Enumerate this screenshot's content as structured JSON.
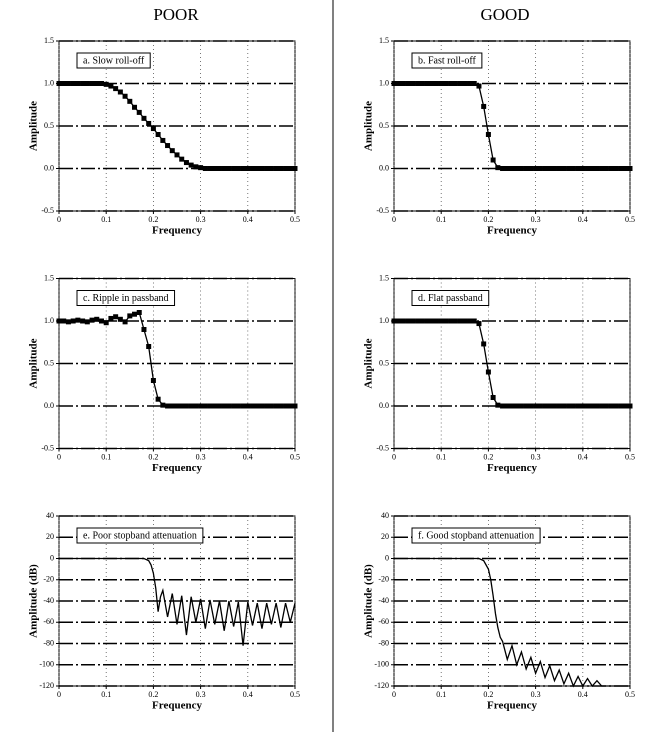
{
  "column_titles": [
    "POOR",
    "GOOD"
  ],
  "chart_data": [
    {
      "type": "line",
      "annotation": "a.  Slow roll-off",
      "xlabel": "Frequency",
      "ylabel": "Amplitude",
      "xlim": [
        0,
        0.5
      ],
      "xticks": [
        0,
        0.1,
        0.2,
        0.3,
        0.4,
        0.5
      ],
      "ylim": [
        -0.5,
        1.5
      ],
      "yticks": [
        1.5,
        {
          "value": 1,
          "label": "1.0"
        },
        0.5,
        {
          "value": 0,
          "label": "0.0"
        },
        -0.5
      ],
      "grid": true,
      "series": [
        {
          "color": "#000000",
          "marker": "square",
          "x": [
            0,
            0.01,
            0.02,
            0.03,
            0.04,
            0.05,
            0.06,
            0.07,
            0.08,
            0.09,
            0.1,
            0.11,
            0.12,
            0.13,
            0.14,
            0.15,
            0.16,
            0.17,
            0.18,
            0.19,
            0.2,
            0.21,
            0.22,
            0.23,
            0.24,
            0.25,
            0.26,
            0.27,
            0.28,
            0.29,
            0.3,
            0.31,
            0.32,
            0.33,
            0.34,
            0.35,
            0.36,
            0.37,
            0.38,
            0.39,
            0.4,
            0.41,
            0.42,
            0.43,
            0.44,
            0.45,
            0.46,
            0.47,
            0.48,
            0.49,
            0.5
          ],
          "values": [
            1,
            1,
            1,
            1,
            1,
            1,
            1,
            1,
            1,
            1,
            0.99,
            0.97,
            0.94,
            0.9,
            0.85,
            0.79,
            0.72,
            0.66,
            0.59,
            0.53,
            0.47,
            0.4,
            0.33,
            0.27,
            0.21,
            0.16,
            0.11,
            0.07,
            0.04,
            0.02,
            0.01,
            0,
            0,
            0,
            0,
            0,
            0,
            0,
            0,
            0,
            0,
            0,
            0,
            0,
            0,
            0,
            0,
            0,
            0,
            0,
            0
          ]
        }
      ]
    },
    {
      "type": "line",
      "annotation": "b.  Fast roll-off",
      "xlabel": "Frequency",
      "ylabel": "Amplitude",
      "xlim": [
        0,
        0.5
      ],
      "xticks": [
        0,
        0.1,
        0.2,
        0.3,
        0.4,
        0.5
      ],
      "ylim": [
        -0.5,
        1.5
      ],
      "yticks": [
        1.5,
        {
          "value": 1,
          "label": "1.0"
        },
        0.5,
        {
          "value": 0,
          "label": "0.0"
        },
        -0.5
      ],
      "grid": true,
      "series": [
        {
          "color": "#000000",
          "marker": "square",
          "x": [
            0,
            0.01,
            0.02,
            0.03,
            0.04,
            0.05,
            0.06,
            0.07,
            0.08,
            0.09,
            0.1,
            0.11,
            0.12,
            0.13,
            0.14,
            0.15,
            0.16,
            0.17,
            0.18,
            0.19,
            0.2,
            0.21,
            0.22,
            0.23,
            0.24,
            0.25,
            0.26,
            0.27,
            0.28,
            0.29,
            0.3,
            0.31,
            0.32,
            0.33,
            0.34,
            0.35,
            0.36,
            0.37,
            0.38,
            0.39,
            0.4,
            0.41,
            0.42,
            0.43,
            0.44,
            0.45,
            0.46,
            0.47,
            0.48,
            0.49,
            0.5
          ],
          "values": [
            1,
            1,
            1,
            1,
            1,
            1,
            1,
            1,
            1,
            1,
            1,
            1,
            1,
            1,
            1,
            1,
            1,
            1,
            0.97,
            0.73,
            0.4,
            0.1,
            0.01,
            0,
            0,
            0,
            0,
            0,
            0,
            0,
            0,
            0,
            0,
            0,
            0,
            0,
            0,
            0,
            0,
            0,
            0,
            0,
            0,
            0,
            0,
            0,
            0,
            0,
            0,
            0,
            0
          ]
        }
      ]
    },
    {
      "type": "line",
      "annotation": "c.  Ripple in passband",
      "xlabel": "Frequency",
      "ylabel": "Amplitude",
      "xlim": [
        0,
        0.5
      ],
      "xticks": [
        0,
        0.1,
        0.2,
        0.3,
        0.4,
        0.5
      ],
      "ylim": [
        -0.5,
        1.5
      ],
      "yticks": [
        1.5,
        {
          "value": 1,
          "label": "1.0"
        },
        0.5,
        {
          "value": 0,
          "label": "0.0"
        },
        -0.5
      ],
      "grid": true,
      "series": [
        {
          "color": "#000000",
          "marker": "square",
          "x": [
            0,
            0.01,
            0.02,
            0.03,
            0.04,
            0.05,
            0.06,
            0.07,
            0.08,
            0.09,
            0.1,
            0.11,
            0.12,
            0.13,
            0.14,
            0.15,
            0.16,
            0.17,
            0.18,
            0.19,
            0.2,
            0.21,
            0.22,
            0.23,
            0.24,
            0.25,
            0.26,
            0.27,
            0.28,
            0.29,
            0.3,
            0.31,
            0.32,
            0.33,
            0.34,
            0.35,
            0.36,
            0.37,
            0.38,
            0.39,
            0.4,
            0.41,
            0.42,
            0.43,
            0.44,
            0.45,
            0.46,
            0.47,
            0.48,
            0.49,
            0.5
          ],
          "values": [
            1,
            1,
            0.99,
            1,
            1.01,
            1,
            0.99,
            1.01,
            1.02,
            1,
            0.98,
            1.03,
            1.05,
            1.02,
            0.99,
            1.06,
            1.08,
            1.1,
            0.9,
            0.7,
            0.3,
            0.08,
            0.01,
            0,
            0,
            0,
            0,
            0,
            0,
            0,
            0,
            0,
            0,
            0,
            0,
            0,
            0,
            0,
            0,
            0,
            0,
            0,
            0,
            0,
            0,
            0,
            0,
            0,
            0,
            0,
            0
          ]
        }
      ]
    },
    {
      "type": "line",
      "annotation": "d.  Flat passband",
      "xlabel": "Frequency",
      "ylabel": "Amplitude",
      "xlim": [
        0,
        0.5
      ],
      "xticks": [
        0,
        0.1,
        0.2,
        0.3,
        0.4,
        0.5
      ],
      "ylim": [
        -0.5,
        1.5
      ],
      "yticks": [
        1.5,
        {
          "value": 1,
          "label": "1.0"
        },
        0.5,
        {
          "value": 0,
          "label": "0.0"
        },
        -0.5
      ],
      "grid": true,
      "series": [
        {
          "color": "#000000",
          "marker": "square",
          "x": [
            0,
            0.01,
            0.02,
            0.03,
            0.04,
            0.05,
            0.06,
            0.07,
            0.08,
            0.09,
            0.1,
            0.11,
            0.12,
            0.13,
            0.14,
            0.15,
            0.16,
            0.17,
            0.18,
            0.19,
            0.2,
            0.21,
            0.22,
            0.23,
            0.24,
            0.25,
            0.26,
            0.27,
            0.28,
            0.29,
            0.3,
            0.31,
            0.32,
            0.33,
            0.34,
            0.35,
            0.36,
            0.37,
            0.38,
            0.39,
            0.4,
            0.41,
            0.42,
            0.43,
            0.44,
            0.45,
            0.46,
            0.47,
            0.48,
            0.49,
            0.5
          ],
          "values": [
            1,
            1,
            1,
            1,
            1,
            1,
            1,
            1,
            1,
            1,
            1,
            1,
            1,
            1,
            1,
            1,
            1,
            1,
            0.97,
            0.73,
            0.4,
            0.1,
            0.01,
            0,
            0,
            0,
            0,
            0,
            0,
            0,
            0,
            0,
            0,
            0,
            0,
            0,
            0,
            0,
            0,
            0,
            0,
            0,
            0,
            0,
            0,
            0,
            0,
            0,
            0,
            0,
            0
          ]
        }
      ]
    },
    {
      "type": "line",
      "annotation": "e.  Poor stopband attenuation",
      "xlabel": "Frequency",
      "ylabel": "Amplitude (dB)",
      "xlim": [
        0,
        0.5
      ],
      "xticks": [
        0,
        0.1,
        0.2,
        0.3,
        0.4,
        0.5
      ],
      "ylim": [
        -120,
        40
      ],
      "yticks": [
        40,
        20,
        0,
        -20,
        -40,
        -60,
        -80,
        -100,
        -120
      ],
      "grid": true,
      "series": [
        {
          "color": "#000000",
          "x": [
            0,
            0.1,
            0.18,
            0.19,
            0.195,
            0.2,
            0.205,
            0.21,
            0.215,
            0.22,
            0.23,
            0.24,
            0.25,
            0.26,
            0.27,
            0.28,
            0.29,
            0.3,
            0.31,
            0.32,
            0.33,
            0.34,
            0.35,
            0.36,
            0.37,
            0.38,
            0.39,
            0.4,
            0.41,
            0.42,
            0.43,
            0.44,
            0.45,
            0.46,
            0.47,
            0.48,
            0.49,
            0.5
          ],
          "values": [
            0,
            0,
            0,
            -2,
            -6,
            -14,
            -28,
            -50,
            -36,
            -30,
            -55,
            -33,
            -62,
            -35,
            -72,
            -36,
            -60,
            -38,
            -66,
            -39,
            -62,
            -40,
            -68,
            -40,
            -64,
            -41,
            -82,
            -41,
            -63,
            -42,
            -66,
            -42,
            -62,
            -42,
            -65,
            -42,
            -60,
            -42
          ]
        }
      ]
    },
    {
      "type": "line",
      "annotation": "f.  Good stopband attenuation",
      "xlabel": "Frequency",
      "ylabel": "Amplitude (dB)",
      "xlim": [
        0,
        0.5
      ],
      "xticks": [
        0,
        0.1,
        0.2,
        0.3,
        0.4,
        0.5
      ],
      "ylim": [
        -120,
        40
      ],
      "yticks": [
        40,
        20,
        0,
        -20,
        -40,
        -60,
        -80,
        -100,
        -120
      ],
      "grid": true,
      "series": [
        {
          "color": "#000000",
          "x": [
            0,
            0.1,
            0.18,
            0.19,
            0.2,
            0.205,
            0.21,
            0.215,
            0.22,
            0.225,
            0.23,
            0.24,
            0.25,
            0.26,
            0.27,
            0.28,
            0.29,
            0.3,
            0.31,
            0.32,
            0.33,
            0.34,
            0.35,
            0.36,
            0.37,
            0.38,
            0.39,
            0.4,
            0.41,
            0.42,
            0.43,
            0.44,
            0.45,
            0.5
          ],
          "values": [
            0,
            0,
            0,
            -2,
            -10,
            -20,
            -35,
            -52,
            -65,
            -74,
            -78,
            -95,
            -82,
            -100,
            -88,
            -104,
            -93,
            -108,
            -97,
            -112,
            -101,
            -115,
            -105,
            -118,
            -108,
            -120,
            -111,
            -120,
            -113,
            -120,
            -115,
            -120,
            -120,
            -120
          ]
        }
      ]
    }
  ]
}
